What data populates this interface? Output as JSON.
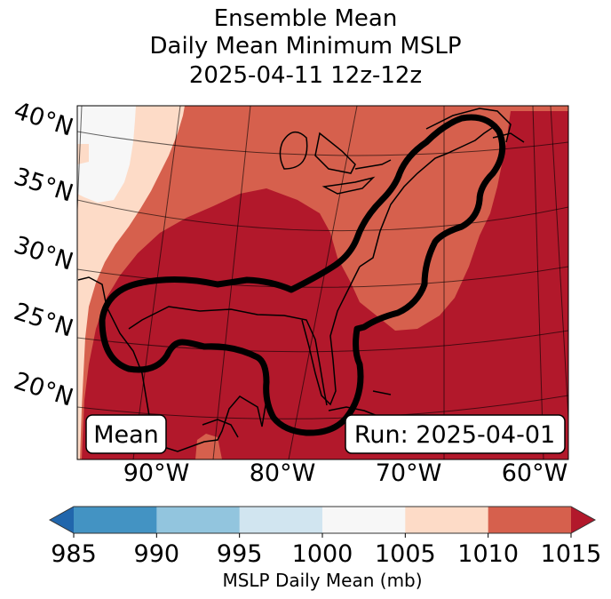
{
  "chart_data": {
    "type": "heatmap",
    "title_lines": [
      "Ensemble Mean",
      "Daily Mean Minimum MSLP",
      "2025-04-11 12z-12z"
    ],
    "map": {
      "projection": "lambert-conformal",
      "lat_ticks": [
        "40°N",
        "35°N",
        "30°N",
        "25°N",
        "20°N"
      ],
      "lat_values": [
        40,
        35,
        30,
        25,
        20
      ],
      "lon_ticks": [
        "90°W",
        "80°W",
        "70°W",
        "60°W"
      ],
      "lon_values": [
        -90,
        -80,
        -70,
        -60
      ],
      "gridlines": true,
      "coastlines": true,
      "contour_outline": "black highlighted region from Texas/Gulf of Mexico across Florida and up the US East Coast to Nova Scotia"
    },
    "annotations": {
      "left_box": "Mean",
      "right_box": "Run: 2025-04-01"
    },
    "colorbar": {
      "label": "MSLP Daily Mean (mb)",
      "orientation": "horizontal",
      "extend": "both",
      "boundaries": [
        985,
        990,
        995,
        1000,
        1005,
        1010,
        1015
      ],
      "tick_labels": [
        "985",
        "990",
        "995",
        "1000",
        "1005",
        "1010",
        "1015"
      ],
      "colors": [
        "#4393c3",
        "#92c5de",
        "#d1e5f0",
        "#f7f7f7",
        "#fddbc7",
        "#d6604d"
      ],
      "under_color": "#2166ac",
      "over_color": "#b2182b"
    },
    "regions": [
      {
        "name": "northwest-upper",
        "range": "1000-1005",
        "color": "#f7f7f7"
      },
      {
        "name": "west-band",
        "range": "1005-1010",
        "color": "#fddbc7"
      },
      {
        "name": "central-band",
        "range": "1010-1015",
        "color": "#d6604d"
      },
      {
        "name": "gulf-and-atlantic",
        "range": ">1015",
        "color": "#b2182b"
      }
    ]
  }
}
